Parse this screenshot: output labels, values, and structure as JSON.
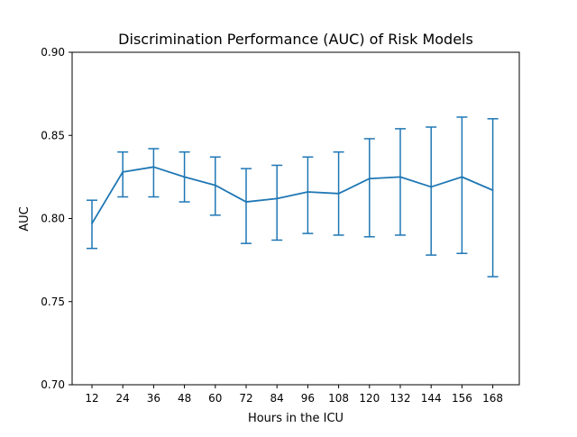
{
  "chart_data": {
    "type": "line",
    "title": "Discrimination Performance (AUC) of Risk Models",
    "xlabel": "Hours in the ICU",
    "ylabel": "AUC",
    "ylim": [
      0.7,
      0.9
    ],
    "yticks": [
      "0.70",
      "0.75",
      "0.80",
      "0.85",
      "0.90"
    ],
    "categories": [
      "12",
      "24",
      "36",
      "48",
      "60",
      "72",
      "84",
      "96",
      "108",
      "120",
      "132",
      "144",
      "156",
      "168"
    ],
    "series": [
      {
        "name": "AUC",
        "color": "#1f77b4",
        "values": [
          0.797,
          0.828,
          0.831,
          0.825,
          0.82,
          0.81,
          0.812,
          0.816,
          0.815,
          0.824,
          0.825,
          0.819,
          0.825,
          0.817
        ],
        "err_low": [
          0.782,
          0.813,
          0.813,
          0.81,
          0.802,
          0.785,
          0.787,
          0.791,
          0.79,
          0.789,
          0.79,
          0.778,
          0.779,
          0.765
        ],
        "err_high": [
          0.811,
          0.84,
          0.842,
          0.84,
          0.837,
          0.83,
          0.832,
          0.837,
          0.84,
          0.848,
          0.854,
          0.855,
          0.861,
          0.86
        ]
      }
    ],
    "grid": false,
    "legend": "none"
  }
}
